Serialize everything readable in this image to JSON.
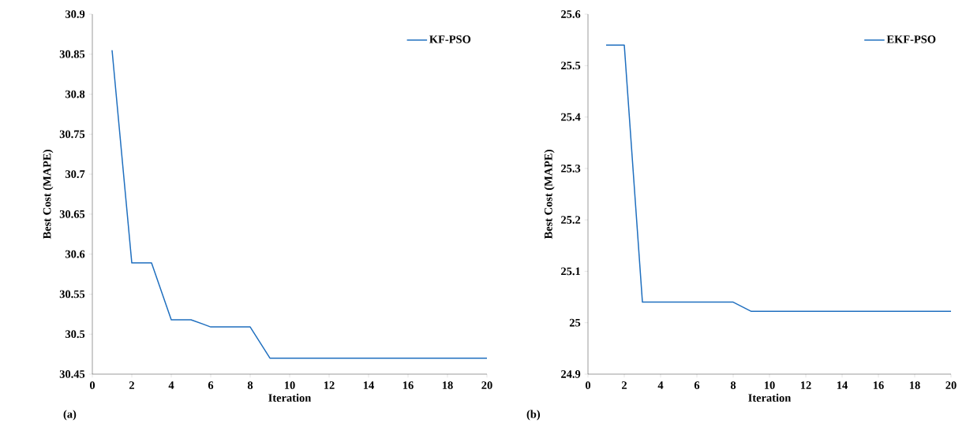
{
  "chart_data": [
    {
      "type": "line",
      "xlabel": "Iteration",
      "ylabel": "Best Cost (MAPE)",
      "annotations": [
        "(a)"
      ],
      "x": [
        1,
        2,
        3,
        4,
        5,
        6,
        7,
        8,
        9,
        10,
        11,
        12,
        13,
        14,
        15,
        16,
        17,
        18,
        19,
        20
      ],
      "series": [
        {
          "name": "KF-PSO",
          "color": "#1f6fbf",
          "values": [
            30.855,
            30.589,
            30.589,
            30.518,
            30.518,
            30.509,
            30.509,
            30.509,
            30.47,
            30.47,
            30.47,
            30.47,
            30.47,
            30.47,
            30.47,
            30.47,
            30.47,
            30.47,
            30.47,
            30.47
          ]
        }
      ],
      "xlim": [
        0,
        20
      ],
      "xticks": [
        0,
        2,
        4,
        6,
        8,
        10,
        12,
        14,
        16,
        18,
        20
      ],
      "ylim": [
        30.45,
        30.9
      ],
      "yticks": [
        30.45,
        30.5,
        30.55,
        30.6,
        30.65,
        30.7,
        30.75,
        30.8,
        30.85,
        30.9
      ],
      "grid": false,
      "legend": "top right",
      "marker": "none",
      "line_style": "solid"
    },
    {
      "type": "line",
      "xlabel": "Iteration",
      "ylabel": "Best Cost (MAPE)",
      "annotations": [
        "(b)"
      ],
      "x": [
        1,
        2,
        3,
        4,
        5,
        6,
        7,
        8,
        9,
        10,
        11,
        12,
        13,
        14,
        15,
        16,
        17,
        18,
        19,
        20
      ],
      "series": [
        {
          "name": "EKF-PSO",
          "color": "#1f6fbf",
          "values": [
            25.54,
            25.54,
            25.04,
            25.04,
            25.04,
            25.04,
            25.04,
            25.04,
            25.022,
            25.022,
            25.022,
            25.022,
            25.022,
            25.022,
            25.022,
            25.022,
            25.022,
            25.022,
            25.022,
            25.022
          ]
        }
      ],
      "xlim": [
        0,
        20
      ],
      "xticks": [
        0,
        2,
        4,
        6,
        8,
        10,
        12,
        14,
        16,
        18,
        20
      ],
      "ylim": [
        24.9,
        25.6
      ],
      "yticks": [
        24.9,
        25,
        25.1,
        25.2,
        25.3,
        25.4,
        25.5,
        25.6
      ],
      "grid": false,
      "legend": "top right",
      "marker": "none",
      "line_style": "solid"
    }
  ]
}
